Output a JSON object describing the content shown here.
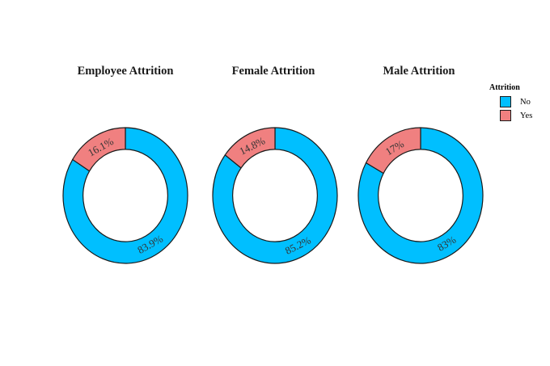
{
  "figure": {
    "background_color": "#ffffff"
  },
  "legend": {
    "title": "Attrition",
    "items": [
      {
        "label": "No",
        "color": "#00BFFF"
      },
      {
        "label": "Yes",
        "color": "#F08080"
      }
    ]
  },
  "style": {
    "slice_edge_color": "#1a1a1a",
    "percent_label_color": "#333333",
    "title_color": "#1a1a1a"
  },
  "chart_data": [
    {
      "type": "pie",
      "title": "Employee Attrition",
      "labels": [
        "No",
        "Yes"
      ],
      "values": [
        83.9,
        16.1
      ],
      "value_labels": [
        "83.9%",
        "16.1%"
      ],
      "colors": [
        "#00BFFF",
        "#F08080"
      ],
      "hole": 0.68,
      "start_angle": 90,
      "direction": "clockwise",
      "legend_position": "right"
    },
    {
      "type": "pie",
      "title": "Female Attrition",
      "labels": [
        "No",
        "Yes"
      ],
      "values": [
        85.2,
        14.8
      ],
      "value_labels": [
        "85.2%",
        "14.8%"
      ],
      "colors": [
        "#00BFFF",
        "#F08080"
      ],
      "hole": 0.68,
      "start_angle": 90,
      "direction": "clockwise",
      "legend_position": "right"
    },
    {
      "type": "pie",
      "title": "Male Attrition",
      "labels": [
        "No",
        "Yes"
      ],
      "values": [
        83,
        17
      ],
      "value_labels": [
        "83%",
        "17%"
      ],
      "colors": [
        "#00BFFF",
        "#F08080"
      ],
      "hole": 0.68,
      "start_angle": 90,
      "direction": "clockwise",
      "legend_position": "right"
    }
  ]
}
